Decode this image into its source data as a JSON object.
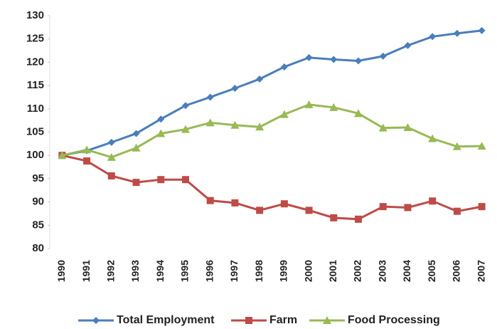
{
  "chart_data": {
    "type": "line",
    "categories": [
      "1990",
      "1991",
      "1992",
      "1993",
      "1994",
      "1995",
      "1996",
      "1997",
      "1998",
      "1999",
      "2000",
      "2001",
      "2002",
      "2003",
      "2004",
      "2005",
      "2006",
      "2007"
    ],
    "series": [
      {
        "name": "Total Employment",
        "color": "#4a7ebb",
        "marker": "diamond",
        "values": [
          100,
          101,
          102.8,
          104.7,
          107.8,
          110.7,
          112.5,
          114.4,
          116.4,
          119,
          121,
          120.6,
          120.3,
          121.3,
          123.6,
          125.5,
          126.2,
          126.8
        ]
      },
      {
        "name": "Farm",
        "color": "#be4b48",
        "marker": "square",
        "values": [
          100,
          98.8,
          95.6,
          94.2,
          94.8,
          94.8,
          90.3,
          89.8,
          88.2,
          89.6,
          88.2,
          86.6,
          86.3,
          89,
          88.8,
          90.2,
          88,
          89
        ]
      },
      {
        "name": "Food Processing",
        "color": "#98b954",
        "marker": "triangle",
        "values": [
          100,
          101.2,
          99.6,
          101.6,
          104.7,
          105.6,
          107,
          106.5,
          106.1,
          108.8,
          110.9,
          110.3,
          109,
          105.9,
          106,
          103.6,
          101.9,
          102
        ]
      }
    ],
    "ylim": [
      80,
      130
    ],
    "yticks": [
      80,
      85,
      90,
      95,
      100,
      105,
      110,
      115,
      120,
      125,
      130
    ],
    "grid": false,
    "legend": "bottom"
  }
}
